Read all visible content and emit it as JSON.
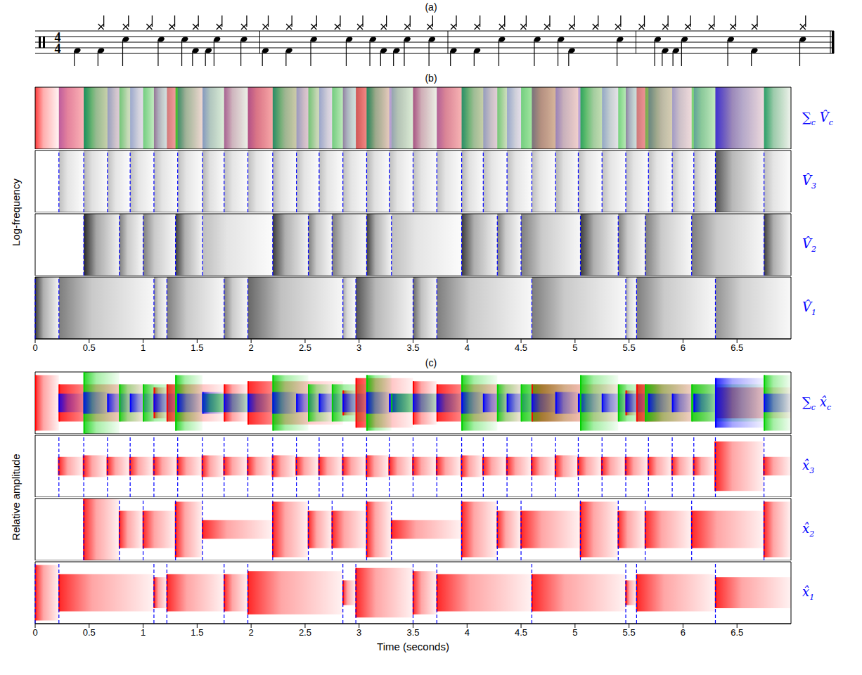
{
  "panel_labels": [
    "(a)",
    "(b)",
    "(c)"
  ],
  "notation": {
    "time_signature": [
      "4",
      "4"
    ],
    "barlines": [
      1.75,
      3.5,
      5.25,
      7
    ]
  },
  "sources": [
    {
      "sub": "1",
      "color": "#ff0000",
      "onsets": [
        0,
        0.22,
        1.1,
        1.22,
        1.75,
        1.97,
        2.85,
        2.97,
        3.5,
        3.72,
        4.6,
        5.47,
        5.57,
        6.3
      ],
      "amplitudes": [
        0.9,
        0.6,
        0.5,
        0.6,
        0.6,
        0.7,
        0.4,
        0.8,
        0.7,
        0.6,
        0.6,
        0.4,
        0.6,
        0.5
      ]
    },
    {
      "sub": "2",
      "color": "#00d000",
      "onsets": [
        0.45,
        0.78,
        1.0,
        1.3,
        1.55,
        2.2,
        2.53,
        2.75,
        3.07,
        3.3,
        3.95,
        4.28,
        4.5,
        5.05,
        5.4,
        5.65,
        6.08,
        6.75
      ],
      "amplitudes": [
        1.0,
        0.6,
        0.6,
        0.9,
        0.3,
        0.9,
        0.6,
        0.6,
        0.9,
        0.3,
        0.9,
        0.6,
        0.6,
        0.9,
        0.6,
        0.6,
        0.6,
        0.9
      ]
    },
    {
      "sub": "3",
      "color": "#0000ff",
      "onsets": [
        0.22,
        0.45,
        0.67,
        0.88,
        1.1,
        1.32,
        1.55,
        1.75,
        1.97,
        2.2,
        2.42,
        2.63,
        2.85,
        3.07,
        3.28,
        3.5,
        3.72,
        3.95,
        4.15,
        4.37,
        4.6,
        4.82,
        5.03,
        5.25,
        5.47,
        5.68,
        5.9,
        6.1,
        6.3,
        6.75
      ],
      "amplitudes": [
        0.3,
        0.35,
        0.3,
        0.3,
        0.3,
        0.3,
        0.35,
        0.3,
        0.3,
        0.35,
        0.3,
        0.3,
        0.3,
        0.35,
        0.3,
        0.3,
        0.3,
        0.35,
        0.3,
        0.3,
        0.3,
        0.35,
        0.3,
        0.3,
        0.3,
        0.3,
        0.3,
        0.3,
        0.8,
        0.3
      ]
    }
  ],
  "chart_data": [
    {
      "type": "spectrogram",
      "y_label": "Log-frequency",
      "xlim": [
        0,
        7
      ],
      "xticks": [
        0,
        0.5,
        1,
        1.5,
        2,
        2.5,
        3,
        3.5,
        4,
        4.5,
        5,
        5.5,
        6,
        6.5
      ],
      "ylim": [
        0,
        1
      ],
      "tick_labels": "x",
      "color": "#000000",
      "symbol": "V̂",
      "sum_symbol": "∑",
      "sum_sub": "c",
      "onsets": {
        "color": "#0000ff",
        "line_style": "dashed"
      }
    },
    {
      "type": "waveform",
      "y_label": "Relative amplitude",
      "x_label": "Time (seconds)",
      "xlim": [
        0,
        7
      ],
      "xticks": [
        0,
        0.5,
        1,
        1.5,
        2,
        2.5,
        3,
        3.5,
        4,
        4.5,
        5,
        5.5,
        6,
        6.5
      ],
      "ylim": [
        -1,
        1
      ],
      "tick_labels": "x",
      "color": "#ff0000",
      "symbol": "x̂",
      "sum_symbol": "∑",
      "sum_sub": "c",
      "onsets": {
        "color": "#0000ff",
        "line_style": "dashed"
      }
    }
  ]
}
